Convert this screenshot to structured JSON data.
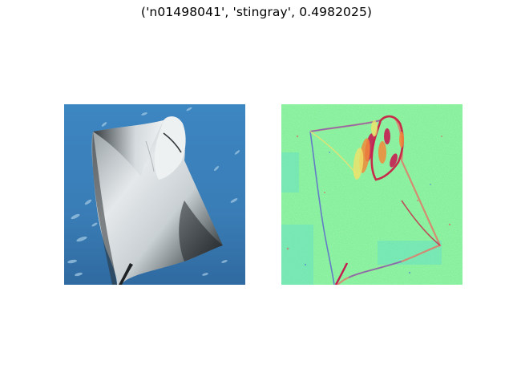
{
  "figure": {
    "title": "('n01498041', 'stingray', 0.4982025)"
  },
  "panels": [
    {
      "kind": "photo",
      "subject": "stingray",
      "background_color": "#3a7fb8"
    },
    {
      "kind": "saliency-heatmap",
      "colormap": "jet",
      "background_color": "#86f09a"
    }
  ]
}
